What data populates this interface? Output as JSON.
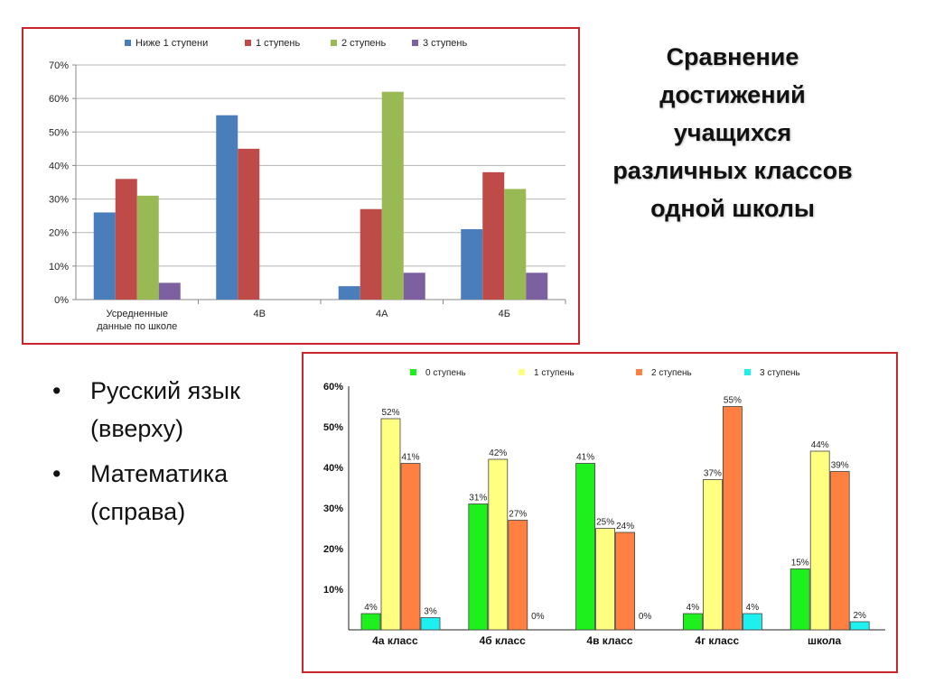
{
  "slide": {
    "title_lines": [
      "Сравнение",
      "достижений",
      "учащихся",
      "различных классов",
      "одной школы"
    ],
    "bullets": [
      {
        "lines": [
          "Русский язык",
          "(вверху)"
        ]
      },
      {
        "lines": [
          "Математика",
          "(справа)"
        ]
      }
    ],
    "bullet_glyph": "•"
  },
  "chart_data": [
    {
      "type": "bar",
      "categories": [
        "Усредненные данные по школе",
        "4В",
        "4А",
        "4Б"
      ],
      "series": [
        {
          "name": "Ниже 1 ступени",
          "color": "#4a7ebb",
          "values": [
            26,
            55,
            4,
            21
          ]
        },
        {
          "name": "1 ступень",
          "color": "#be4b48",
          "values": [
            36,
            45,
            27,
            38
          ]
        },
        {
          "name": "2 ступень",
          "color": "#98b954",
          "values": [
            31,
            0,
            62,
            33
          ]
        },
        {
          "name": "3 ступень",
          "color": "#7d60a0",
          "values": [
            5,
            0,
            8,
            8
          ]
        }
      ],
      "ylim": [
        0,
        70
      ],
      "yticks": [
        "0%",
        "10%",
        "20%",
        "30%",
        "40%",
        "50%",
        "60%",
        "70%"
      ],
      "grid": true,
      "legend": "top"
    },
    {
      "type": "bar",
      "categories": [
        "4а класс",
        "4б класс",
        "4в класс",
        "4г класс",
        "школа"
      ],
      "series": [
        {
          "name": "0 ступень",
          "color": "#1ef01e",
          "values": [
            4,
            31,
            41,
            4,
            15
          ],
          "labels": [
            "4%",
            "31%",
            "41%",
            "4%",
            "15%"
          ]
        },
        {
          "name": "1 ступень",
          "color": "#ffff80",
          "values": [
            52,
            42,
            25,
            37,
            44
          ],
          "labels": [
            "52%",
            "42%",
            "25%",
            "37%",
            "44%"
          ]
        },
        {
          "name": "2 ступень",
          "color": "#ff8040",
          "values": [
            41,
            27,
            24,
            55,
            39
          ],
          "labels": [
            "41%",
            "27%",
            "24%",
            "55%",
            "39%"
          ]
        },
        {
          "name": "3 ступень",
          "color": "#1ef0f0",
          "values": [
            3,
            0,
            0,
            4,
            2
          ],
          "labels": [
            "3%",
            "0%",
            "0%",
            "4%",
            "2%"
          ]
        }
      ],
      "ylim": [
        0,
        60
      ],
      "yticks": [
        "10%",
        "20%",
        "30%",
        "40%",
        "50%",
        "60%"
      ],
      "grid": false,
      "legend": "top"
    }
  ]
}
